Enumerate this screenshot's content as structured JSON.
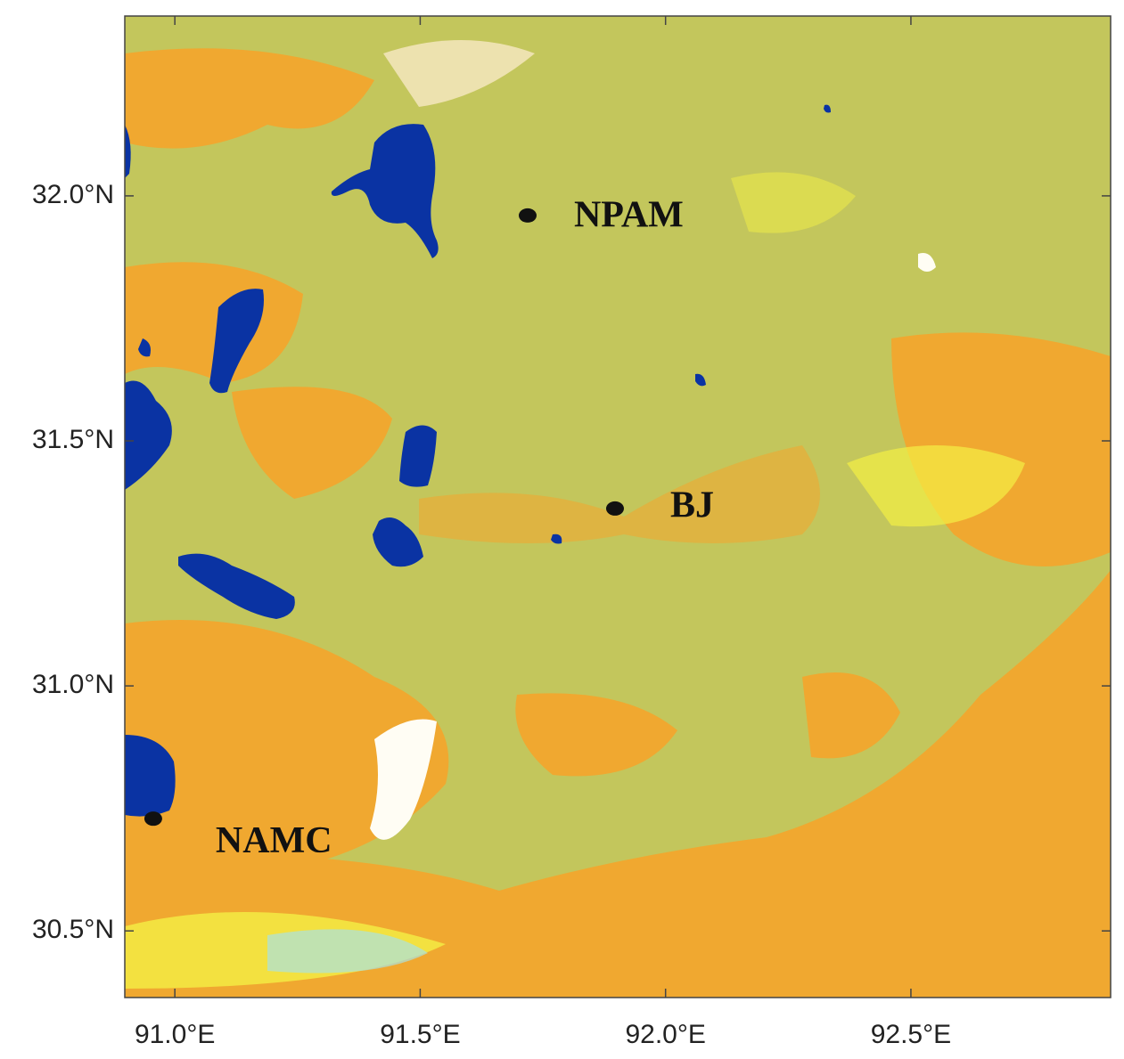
{
  "map": {
    "xlim": [
      90.898,
      92.907
    ],
    "ylim": [
      30.364,
      32.367
    ],
    "xticks": [
      {
        "value": 91.0,
        "label": "91.0°E"
      },
      {
        "value": 91.5,
        "label": "91.5°E"
      },
      {
        "value": 92.0,
        "label": "92.0°E"
      },
      {
        "value": 92.5,
        "label": "92.5°E"
      }
    ],
    "yticks": [
      {
        "value": 30.5,
        "label": "30.5°N"
      },
      {
        "value": 31.0,
        "label": "31.0°N"
      },
      {
        "value": 31.5,
        "label": "31.5°N"
      },
      {
        "value": 32.0,
        "label": "32.0°N"
      }
    ],
    "stations": [
      {
        "name": "NPAM",
        "lon": 91.719,
        "lat": 31.96
      },
      {
        "name": "BJ",
        "lon": 91.897,
        "lat": 31.362
      },
      {
        "name": "NAMC",
        "lon": 90.956,
        "lat": 30.729
      }
    ]
  }
}
